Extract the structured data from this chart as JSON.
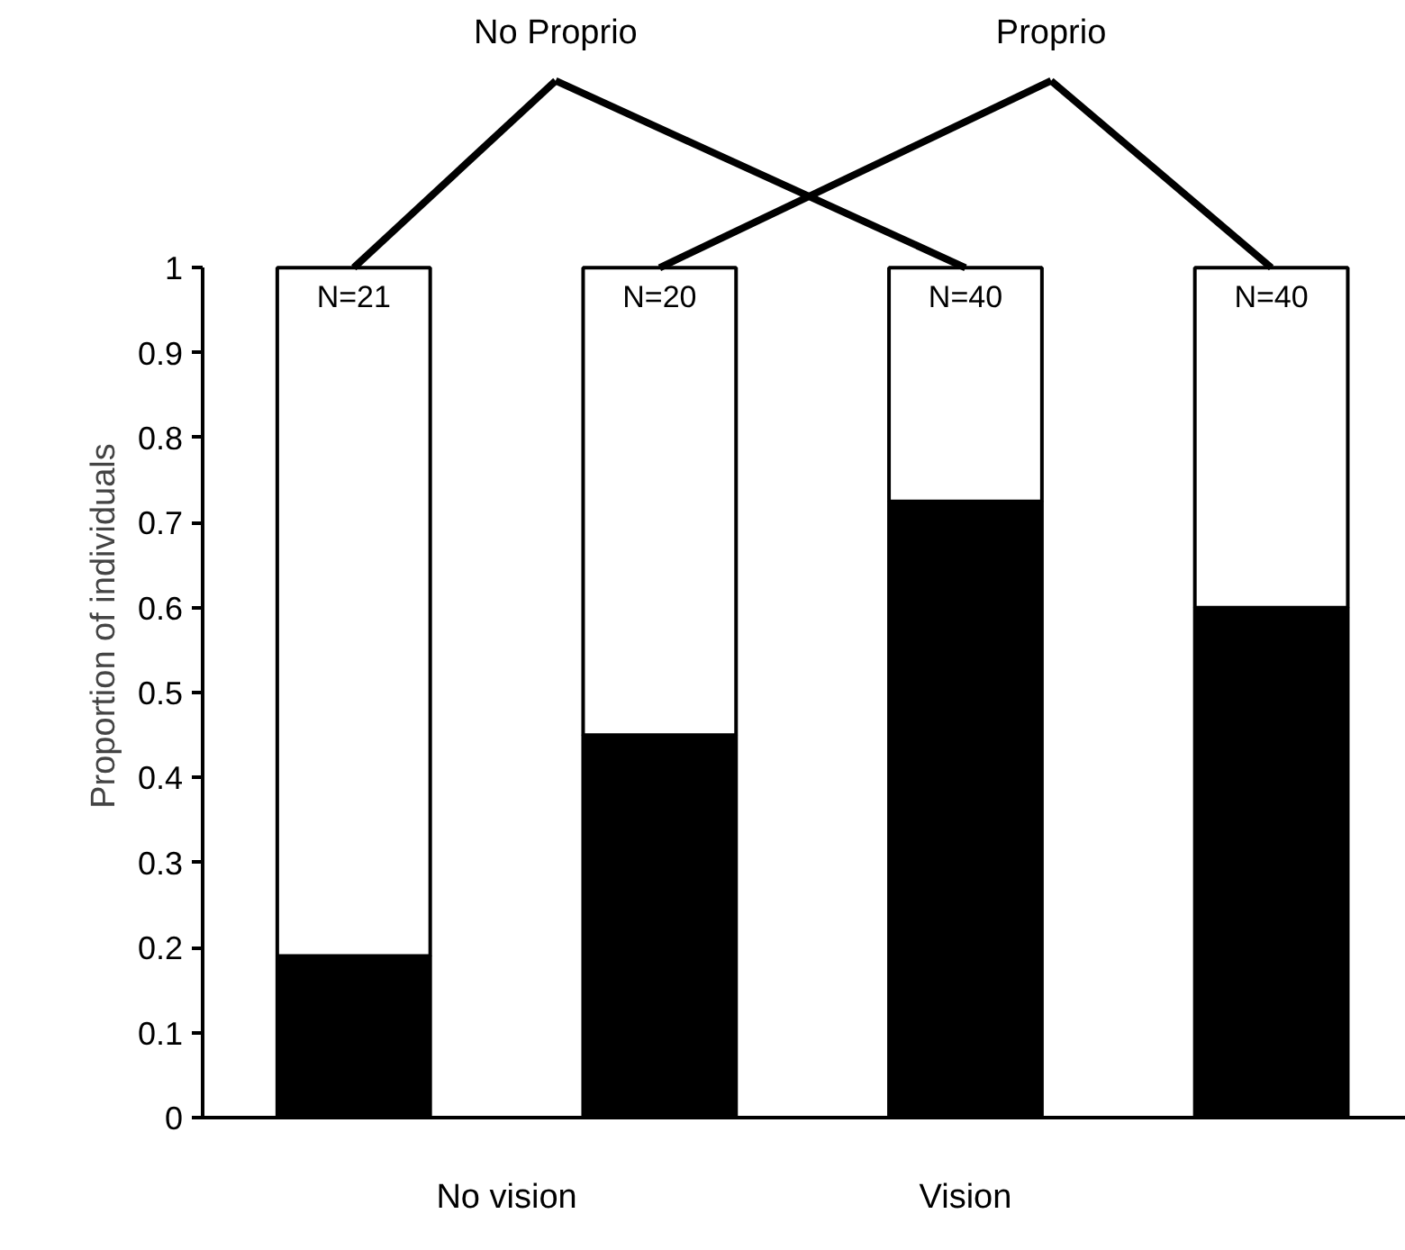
{
  "chart_data": {
    "type": "bar",
    "ylabel": "Proportion of individuals",
    "categories": [
      null,
      null,
      null,
      null
    ],
    "stacked": true,
    "series": [
      {
        "color": "#000000",
        "values": [
          0.19,
          0.45,
          0.725,
          0.6
        ]
      },
      {
        "color": "#ffffff",
        "values": [
          0.81,
          0.55,
          0.275,
          0.4
        ]
      }
    ],
    "ylim": [
      0,
      1
    ],
    "yticks": [
      0,
      0.1,
      0.2,
      0.3,
      0.4,
      0.5,
      0.6,
      0.7,
      0.8,
      0.9,
      1
    ],
    "grid": false,
    "annotations": [
      "N=21",
      "N=20",
      "N=40",
      "N=40",
      "No vision",
      "Vision",
      "No Proprio",
      "Proprio"
    ]
  }
}
